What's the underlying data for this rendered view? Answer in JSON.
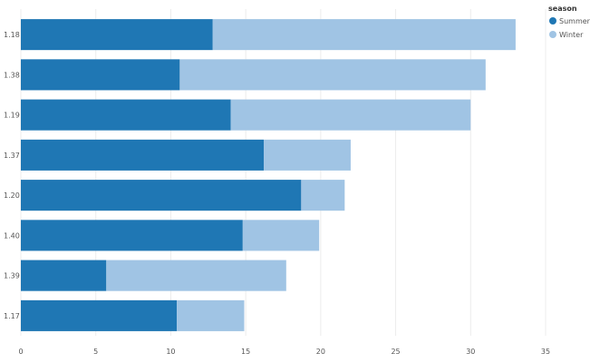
{
  "chart_data": {
    "type": "bar",
    "orientation": "horizontal",
    "stacked": true,
    "categories": [
      "1.18",
      "1.38",
      "1.19",
      "1.37",
      "1.20",
      "1.40",
      "1.39",
      "1.17"
    ],
    "series": [
      {
        "name": "Summer",
        "color": "#1f77b4",
        "values": [
          12.8,
          10.6,
          14.0,
          16.2,
          18.7,
          14.8,
          5.7,
          10.4
        ]
      },
      {
        "name": "Winter",
        "color": "#a0c4e4",
        "values": [
          20.2,
          20.4,
          16.0,
          5.8,
          2.9,
          5.1,
          12.0,
          4.5
        ]
      }
    ],
    "xlim": [
      0,
      35
    ],
    "xticks": [
      0,
      5,
      10,
      15,
      20,
      25,
      30,
      35
    ],
    "grid": "vertical",
    "legend": {
      "title": "season",
      "placement": "top-right"
    },
    "title": "",
    "xlabel": "",
    "ylabel": ""
  }
}
